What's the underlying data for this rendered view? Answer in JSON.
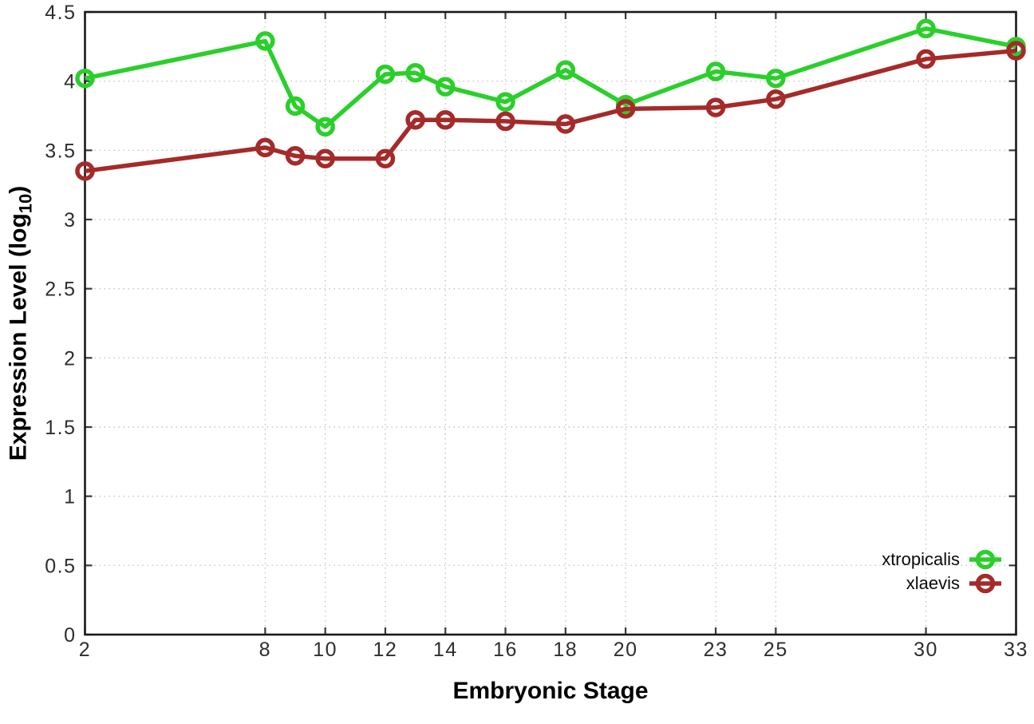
{
  "figure": {
    "background": "#ffffff"
  },
  "chart_data": {
    "type": "line",
    "title": "",
    "xlabel": "Embryonic Stage",
    "ylabel": "Expression Level (log10)",
    "ylabel_parts": {
      "pre": "Expression Level (log",
      "sub": "10",
      "post": ")"
    },
    "xlim": [
      2,
      33
    ],
    "ylim": [
      0,
      4.5
    ],
    "x_ticks": [
      2,
      8,
      10,
      12,
      14,
      16,
      18,
      20,
      23,
      25,
      30,
      33
    ],
    "y_ticks": [
      0,
      0.5,
      1,
      1.5,
      2,
      2.5,
      3,
      3.5,
      4,
      4.5
    ],
    "y_tick_labels": [
      "0",
      "0.5",
      "1",
      "1.5",
      "2",
      "2.5",
      "3",
      "3.5",
      "4",
      "4.5"
    ],
    "grid": true,
    "legend_position": "inside-bottom-right",
    "marker": "open-circle",
    "x": [
      2,
      8,
      9,
      10,
      12,
      13,
      14,
      16,
      18,
      20,
      23,
      25,
      30,
      33
    ],
    "series": [
      {
        "name": "xtropicalis",
        "color": "#2bcf2b",
        "values": [
          4.02,
          4.29,
          3.82,
          3.67,
          4.05,
          4.06,
          3.96,
          3.85,
          4.08,
          3.83,
          4.07,
          4.02,
          4.38,
          4.25
        ]
      },
      {
        "name": "xlaevis",
        "color": "#a52a2a",
        "values": [
          3.35,
          3.52,
          3.46,
          3.44,
          3.44,
          3.72,
          3.72,
          3.71,
          3.69,
          3.8,
          3.81,
          3.87,
          4.16,
          4.22
        ]
      }
    ],
    "colors": {
      "grid": "#c6c6c6",
      "axis": "#1a1a1a",
      "tick": "#3a3a3a",
      "tick_text": "#2e2e2e"
    }
  }
}
